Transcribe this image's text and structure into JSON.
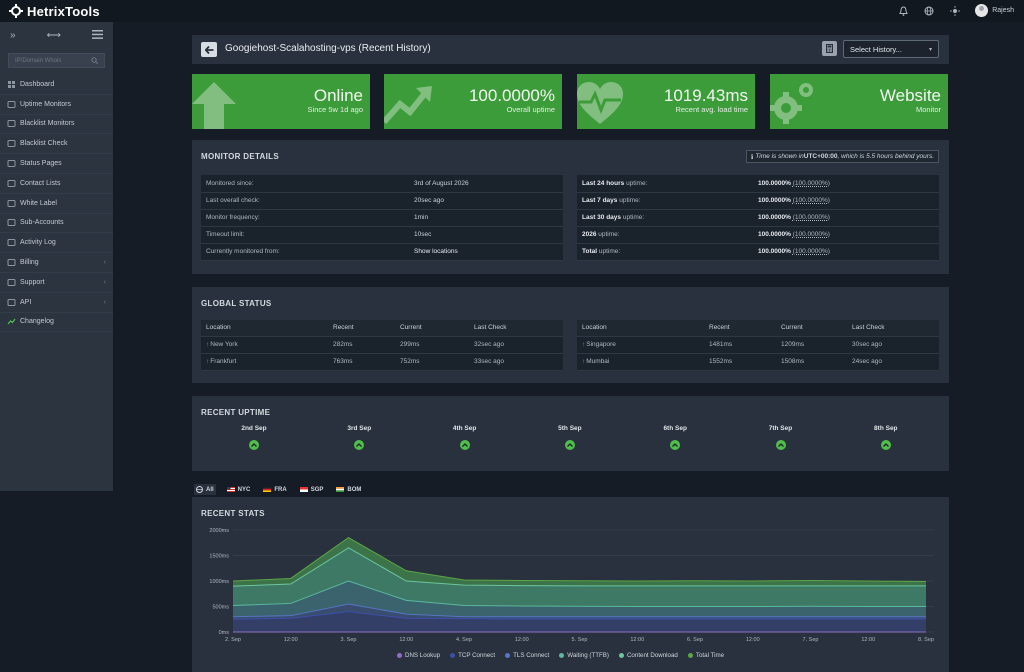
{
  "app": {
    "brand": "HetrixTools",
    "user_name": "Rajesh"
  },
  "topbar_icons": [
    "bell-icon",
    "globe-icon",
    "sun-icon"
  ],
  "sidebar": {
    "search_placeholder": "IP/Domain Whois",
    "items": [
      {
        "label": "Dashboard",
        "icon": "dashboard-icon",
        "chevron": false
      },
      {
        "label": "Uptime Monitors",
        "icon": "monitor-icon",
        "chevron": false
      },
      {
        "label": "Blacklist Monitors",
        "icon": "list-icon",
        "chevron": false
      },
      {
        "label": "Blacklist Check",
        "icon": "search-list-icon",
        "chevron": false
      },
      {
        "label": "Status Pages",
        "icon": "signal-icon",
        "chevron": false
      },
      {
        "label": "Contact Lists",
        "icon": "contacts-icon",
        "chevron": false
      },
      {
        "label": "White Label",
        "icon": "tag-icon",
        "chevron": false
      },
      {
        "label": "Sub-Accounts",
        "icon": "users-icon",
        "chevron": false
      },
      {
        "label": "Activity Log",
        "icon": "log-icon",
        "chevron": false
      },
      {
        "label": "Billing",
        "icon": "card-icon",
        "chevron": true
      },
      {
        "label": "Support",
        "icon": "support-icon",
        "chevron": true
      },
      {
        "label": "API",
        "icon": "code-icon",
        "chevron": true
      },
      {
        "label": "Changelog",
        "icon": "changelog-icon",
        "chevron": false
      }
    ]
  },
  "header": {
    "title": "Googiehost-Scalahosting-vps (Recent History)",
    "history_select": "Select History..."
  },
  "cards": [
    {
      "big": "Online",
      "small": "Since 5w 1d ago",
      "icon": "arrow-up-icon"
    },
    {
      "big": "100.0000%",
      "small": "Overall uptime",
      "icon": "trend-up-icon"
    },
    {
      "big": "1019.43ms",
      "small": "Recent avg. load time",
      "icon": "heartbeat-icon"
    },
    {
      "big": "Website",
      "small": "Monitor",
      "icon": "gears-icon"
    }
  ],
  "monitor_details": {
    "title": "MONITOR DETAILS",
    "tz_prefix": "Time is shown in ",
    "tz_zone": "UTC+00:00",
    "tz_suffix": ", which is 5.5 hours behind yours.",
    "left_rows": [
      {
        "label": "Monitored since:",
        "value": "3rd of August 2026"
      },
      {
        "label": "Last overall check:",
        "value": "20sec ago"
      },
      {
        "label": "Monitor frequency:",
        "value": "1min"
      },
      {
        "label": "Timeout limit:",
        "value": "10sec"
      },
      {
        "label": "Currently monitored from:",
        "value": "Show locations"
      }
    ],
    "right_rows": [
      {
        "label_bold": "Last 24 hours",
        "label_rest": " uptime:",
        "value": "100.0000%",
        "sub": "(100.0000%)"
      },
      {
        "label_bold": "Last 7 days",
        "label_rest": " uptime:",
        "value": "100.0000%",
        "sub": "(100.0000%)"
      },
      {
        "label_bold": "Last 30 days",
        "label_rest": " uptime:",
        "value": "100.0000%",
        "sub": "(100.0000%)"
      },
      {
        "label_bold": "2026",
        "label_rest": " uptime:",
        "value": "100.0000%",
        "sub": "(100.0000%)"
      },
      {
        "label_bold": "Total",
        "label_rest": " uptime:",
        "value": "100.0000%",
        "sub": "(100.0000%)"
      }
    ]
  },
  "global_status": {
    "title": "GLOBAL STATUS",
    "columns": [
      "Location",
      "Recent",
      "Current",
      "Last Check"
    ],
    "left_rows": [
      [
        "New York",
        "282ms",
        "299ms",
        "32sec ago"
      ],
      [
        "Frankfurt",
        "763ms",
        "752ms",
        "33sec ago"
      ]
    ],
    "right_rows": [
      [
        "Singapore",
        "1481ms",
        "1209ms",
        "30sec ago"
      ],
      [
        "Mumbai",
        "1552ms",
        "1508ms",
        "24sec ago"
      ]
    ]
  },
  "recent_uptime": {
    "title": "RECENT UPTIME",
    "days": [
      "2nd Sep",
      "3rd Sep",
      "4th Sep",
      "5th Sep",
      "6th Sep",
      "7th Sep",
      "8th Sep"
    ]
  },
  "tabs": [
    {
      "label": "All",
      "flag": "globe"
    },
    {
      "label": "NYC",
      "flag": "us"
    },
    {
      "label": "FRA",
      "flag": "de"
    },
    {
      "label": "SGP",
      "flag": "sg"
    },
    {
      "label": "BOM",
      "flag": "in"
    }
  ],
  "recent_stats": {
    "title": "RECENT STATS"
  },
  "chart_data": {
    "type": "area",
    "title": "RECENT STATS",
    "ylim": [
      0,
      2000
    ],
    "y_ticks": [
      "0ms",
      "500ms",
      "1000ms",
      "1500ms",
      "2000ms"
    ],
    "x_ticks": [
      "2. Sep",
      "12:00",
      "3. Sep",
      "12:00",
      "4. Sep",
      "12:00",
      "5. Sep",
      "12:00",
      "6. Sep",
      "12:00",
      "7. Sep",
      "12:00",
      "8. Sep"
    ],
    "grid": true,
    "legend_position": "bottom",
    "series": [
      {
        "name": "DNS Lookup",
        "color": "#8e6fc7",
        "values": [
          0,
          0,
          0,
          0,
          0,
          0,
          0,
          0,
          0,
          0,
          0,
          0,
          0
        ]
      },
      {
        "name": "TCP Connect",
        "color": "#3e4fa8",
        "values": [
          250,
          270,
          400,
          270,
          260,
          255,
          255,
          255,
          255,
          255,
          255,
          255,
          255
        ]
      },
      {
        "name": "TLS Connect",
        "color": "#5675c4",
        "values": [
          300,
          320,
          550,
          350,
          300,
          300,
          300,
          300,
          300,
          300,
          300,
          300,
          300
        ]
      },
      {
        "name": "Waiting (TTFB)",
        "color": "#5bb89e",
        "values": [
          520,
          560,
          1000,
          620,
          520,
          510,
          505,
          500,
          500,
          500,
          505,
          500,
          500
        ]
      },
      {
        "name": "Content Download",
        "color": "#6cc5a0",
        "values": [
          900,
          940,
          1650,
          1000,
          920,
          910,
          905,
          905,
          905,
          905,
          905,
          905,
          905
        ]
      },
      {
        "name": "Total Time",
        "color": "#5ca548",
        "values": [
          1000,
          1050,
          1850,
          1200,
          1020,
          1010,
          1005,
          1000,
          1005,
          1000,
          1010,
          1000,
          990
        ]
      }
    ]
  }
}
